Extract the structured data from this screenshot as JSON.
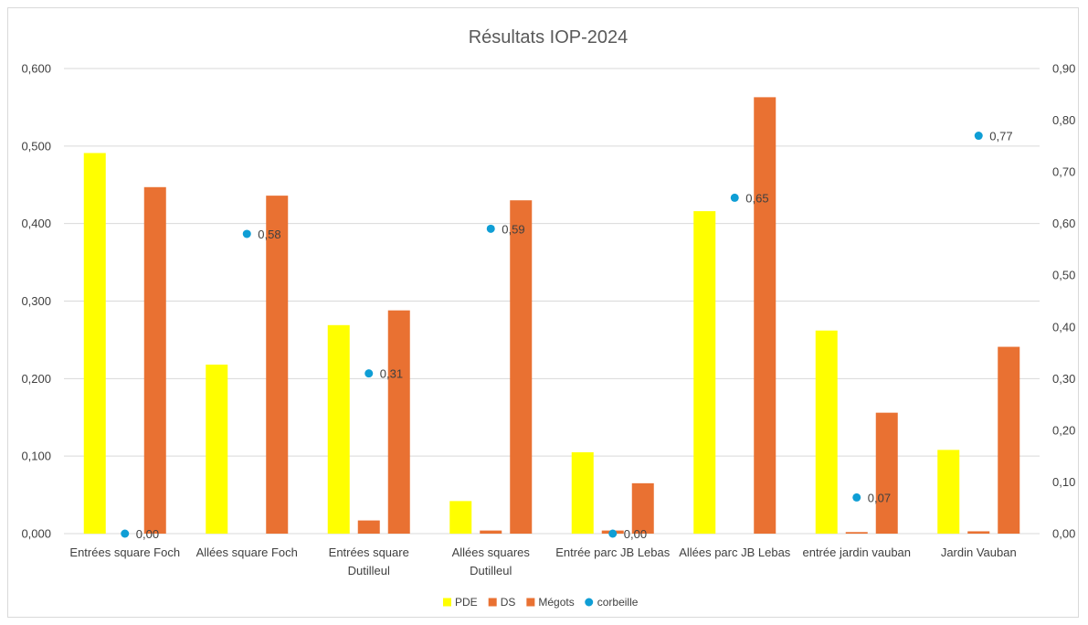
{
  "chart_data": {
    "type": "bar",
    "title": "Résultats IOP-2024",
    "categories": [
      [
        "Entrées square Foch"
      ],
      [
        "Allées square Foch"
      ],
      [
        "Entrées square",
        "Dutilleul"
      ],
      [
        "Allées squares",
        "Dutilleul"
      ],
      [
        "Entrée parc JB Lebas"
      ],
      [
        "Allées parc JB Lebas"
      ],
      [
        "entrée jardin vauban"
      ],
      [
        "Jardin Vauban"
      ]
    ],
    "y_left": {
      "ylim": [
        0,
        0.6
      ],
      "ticks": [
        "0,000",
        "0,100",
        "0,200",
        "0,300",
        "0,400",
        "0,500",
        "0,600"
      ]
    },
    "y_right": {
      "ylim": [
        0,
        0.9
      ],
      "ticks": [
        "0,00",
        "0,10",
        "0,20",
        "0,30",
        "0,40",
        "0,50",
        "0,60",
        "0,70",
        "0,80",
        "0,90"
      ]
    },
    "series": [
      {
        "name": "PDE",
        "type": "bar",
        "axis": "left",
        "color": "#FFFF00",
        "values": [
          0.491,
          0.218,
          0.269,
          0.042,
          0.105,
          0.416,
          0.262,
          0.108
        ]
      },
      {
        "name": "DS",
        "type": "bar",
        "axis": "left",
        "color": "#E97132",
        "values": [
          0.0,
          0.0,
          0.017,
          0.004,
          0.004,
          0.0,
          0.002,
          0.003
        ]
      },
      {
        "name": "Mégots",
        "type": "bar",
        "axis": "left",
        "color": "#E97132",
        "values": [
          0.447,
          0.436,
          0.288,
          0.43,
          0.065,
          0.563,
          0.156,
          0.241
        ]
      },
      {
        "name": "corbeille",
        "type": "scatter",
        "axis": "right",
        "color": "#0F9ED5",
        "values": [
          0.0,
          0.58,
          0.31,
          0.59,
          0.0,
          0.65,
          0.07,
          0.77
        ],
        "labels": [
          "0,00",
          "0,58",
          "0,31",
          "0,59",
          "0,00",
          "0,65",
          "0,07",
          "0,77"
        ]
      }
    ],
    "legend": "bottom",
    "grid": true
  }
}
